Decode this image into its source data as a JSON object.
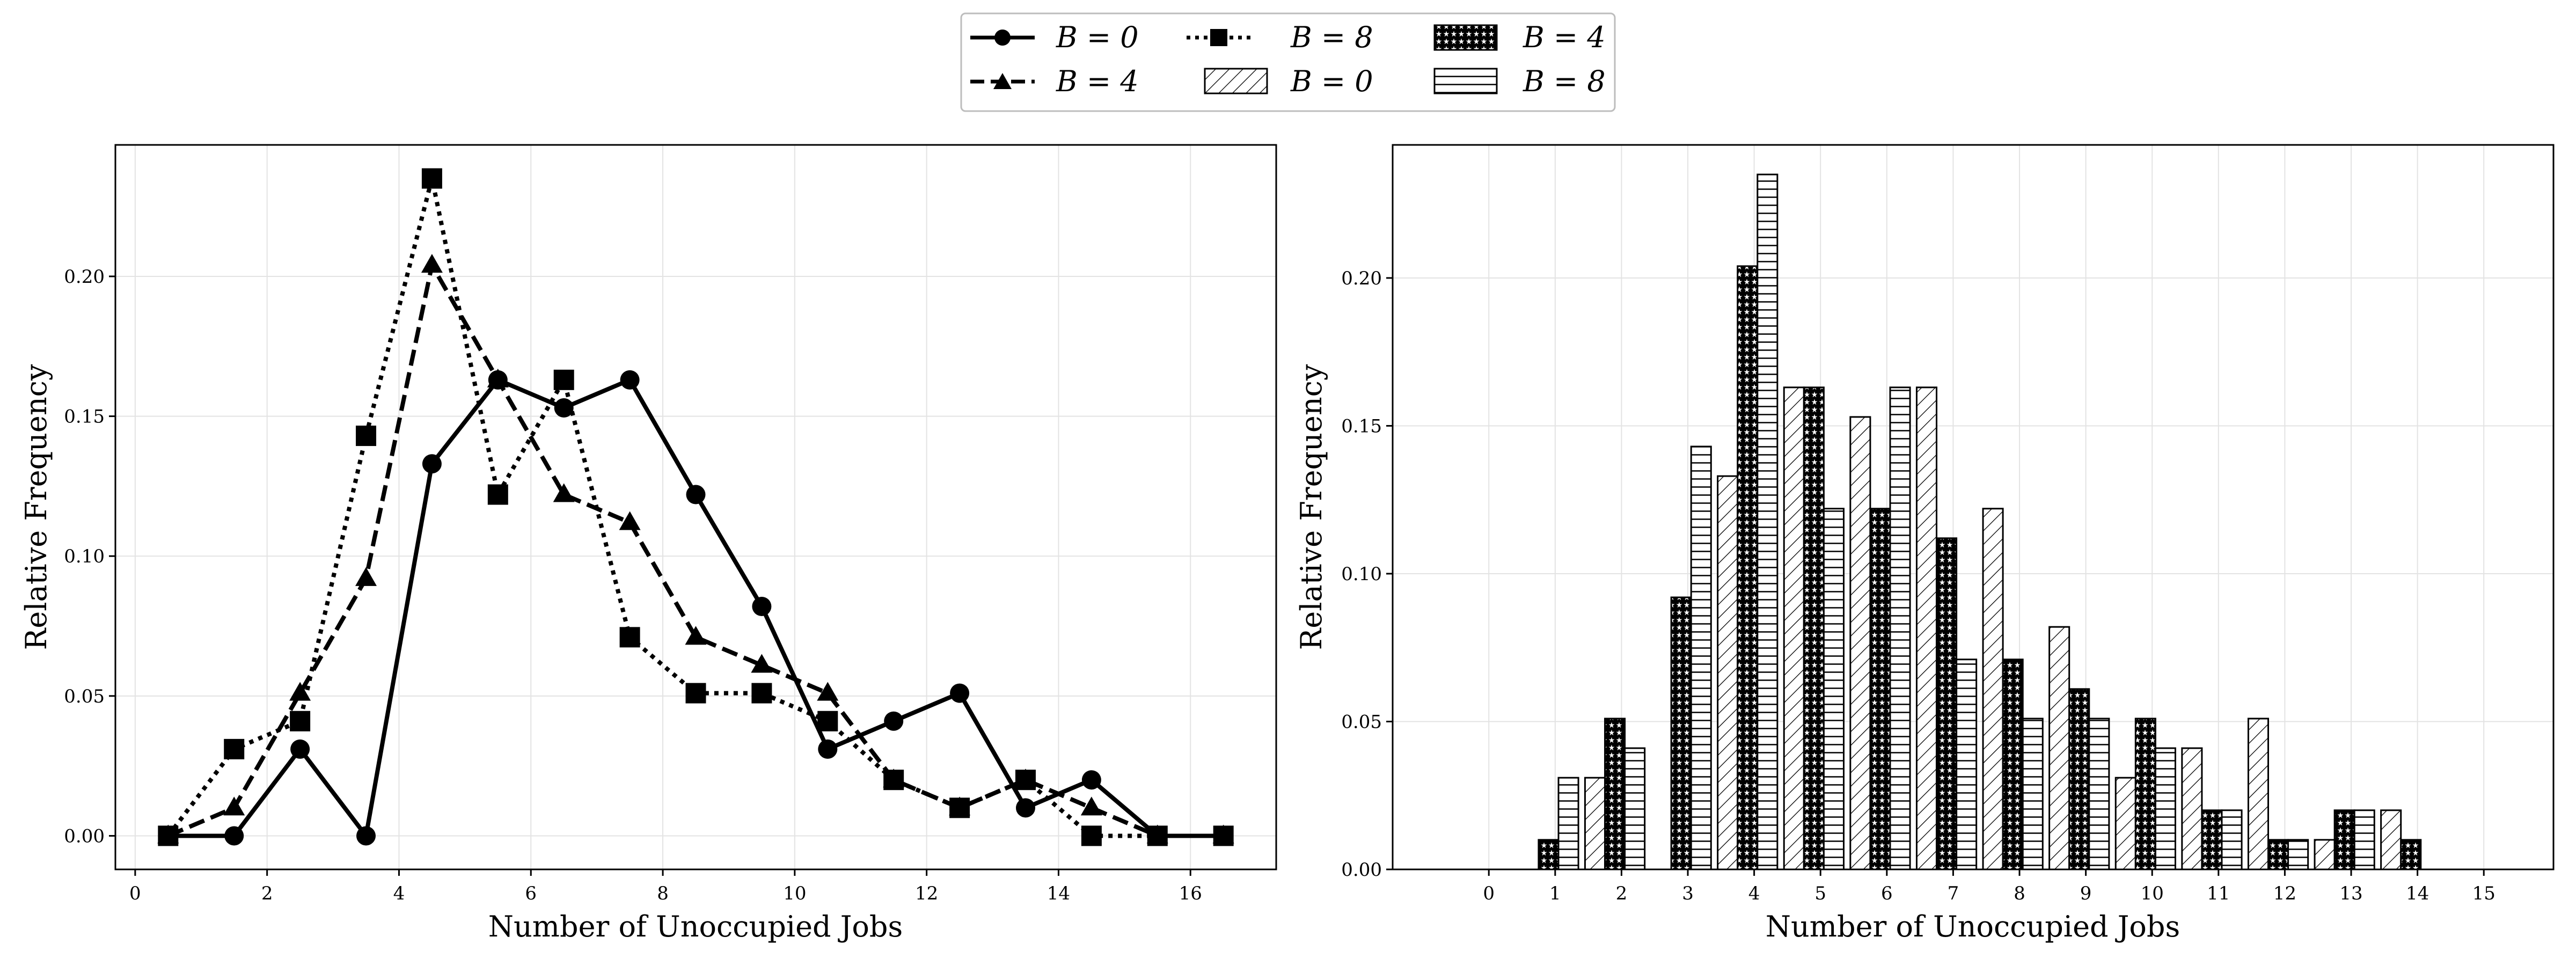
{
  "legend": {
    "entries": [
      {
        "kind": "line",
        "series": "B0",
        "label": "B = 0"
      },
      {
        "kind": "line",
        "series": "B4",
        "label": "B = 4"
      },
      {
        "kind": "line",
        "series": "B8",
        "label": "B = 8"
      },
      {
        "kind": "bar",
        "series": "B0",
        "label": "B = 0"
      },
      {
        "kind": "bar",
        "series": "B4",
        "label": "B = 4"
      },
      {
        "kind": "bar",
        "series": "B8",
        "label": "B = 8"
      }
    ]
  },
  "chart_data": [
    {
      "type": "line",
      "xlabel": "Number of Unoccupied Jobs",
      "ylabel": "Relative Frequency",
      "xlim": [
        -0.3,
        17.3
      ],
      "ylim": [
        -0.012,
        0.247
      ],
      "xticks": [
        0,
        2,
        4,
        6,
        8,
        10,
        12,
        14,
        16
      ],
      "yticks": [
        0.0,
        0.05,
        0.1,
        0.15,
        0.2
      ],
      "grid": true,
      "x": [
        0.5,
        1.5,
        2.5,
        3.5,
        4.5,
        5.5,
        6.5,
        7.5,
        8.5,
        9.5,
        10.5,
        11.5,
        12.5,
        13.5,
        14.5,
        15.5,
        16.5
      ],
      "series": [
        {
          "id": "B0",
          "name": "B = 0",
          "marker": "circle",
          "dash": "solid",
          "values": [
            0.0,
            0.0,
            0.031,
            0.0,
            0.133,
            0.163,
            0.153,
            0.163,
            0.122,
            0.082,
            0.031,
            0.041,
            0.051,
            0.01,
            0.02,
            0.0,
            0.0
          ]
        },
        {
          "id": "B4",
          "name": "B = 4",
          "marker": "triangle",
          "dash": "dashed",
          "values": [
            0.0,
            0.01,
            0.051,
            0.092,
            0.204,
            0.163,
            0.122,
            0.112,
            0.071,
            0.061,
            0.051,
            0.02,
            0.01,
            0.02,
            0.01,
            0.0,
            0.0
          ]
        },
        {
          "id": "B8",
          "name": "B = 8",
          "marker": "square",
          "dash": "dotted",
          "values": [
            0.0,
            0.031,
            0.041,
            0.143,
            0.235,
            0.122,
            0.163,
            0.071,
            0.051,
            0.051,
            0.041,
            0.02,
            0.01,
            0.02,
            0.0,
            0.0,
            0.0
          ]
        }
      ]
    },
    {
      "type": "bar",
      "xlabel": "Number of Unoccupied Jobs",
      "ylabel": "Relative Frequency",
      "xlim": [
        -1.45,
        16.05
      ],
      "ylim": [
        0.0,
        0.245
      ],
      "yticks": [
        0.0,
        0.05,
        0.1,
        0.15,
        0.2
      ],
      "grid": true,
      "categories": [
        "0",
        "1",
        "2",
        "3",
        "4",
        "5",
        "6",
        "7",
        "8",
        "9",
        "10",
        "11",
        "12",
        "13",
        "14",
        "15"
      ],
      "series": [
        {
          "id": "B0",
          "name": "B = 0",
          "hatch": "diagonal",
          "values": [
            0.0,
            0.0,
            0.031,
            0.0,
            0.133,
            0.163,
            0.153,
            0.163,
            0.122,
            0.082,
            0.031,
            0.041,
            0.051,
            0.01,
            0.02,
            0.0
          ]
        },
        {
          "id": "B4",
          "name": "B = 4",
          "hatch": "stars",
          "values": [
            0.0,
            0.01,
            0.051,
            0.092,
            0.204,
            0.163,
            0.122,
            0.112,
            0.071,
            0.061,
            0.051,
            0.02,
            0.01,
            0.02,
            0.01,
            0.0
          ]
        },
        {
          "id": "B8",
          "name": "B = 8",
          "hatch": "horizontal",
          "values": [
            0.0,
            0.031,
            0.041,
            0.143,
            0.235,
            0.122,
            0.163,
            0.071,
            0.051,
            0.051,
            0.041,
            0.02,
            0.01,
            0.02,
            0.0,
            0.0
          ]
        }
      ]
    }
  ]
}
